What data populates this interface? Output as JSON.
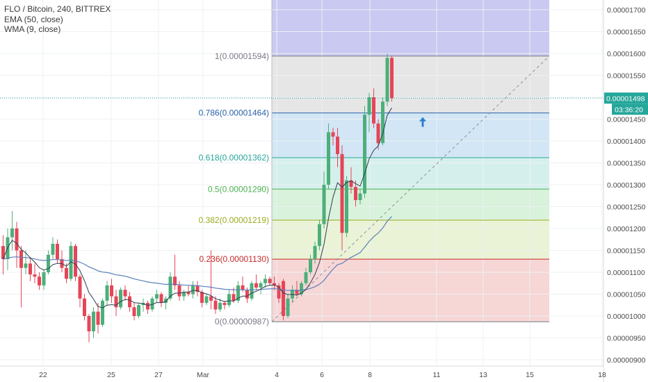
{
  "chart_data": {
    "type": "candlestick",
    "symbol_line": "FLO / Bitcoin, 240, BITTREX",
    "indicators": [
      "EMA (50, close)",
      "WMA (9, close)"
    ],
    "y_ticks": [
      "0.00001700",
      "0.00001650",
      "0.00001600",
      "0.00001550",
      "0.00001500",
      "0.00001450",
      "0.00001400",
      "0.00001350",
      "0.00001300",
      "0.00001250",
      "0.00001200",
      "0.00001150",
      "0.00001100",
      "0.00001050",
      "0.00001000",
      "0.00000950",
      "0.00000900"
    ],
    "ylim": [
      8.9e-06,
      1.74e-05
    ],
    "x_ticks": [
      "22",
      "25",
      "27",
      "Mar",
      "4",
      "6",
      "8",
      "11",
      "13",
      "15",
      "18"
    ],
    "last_price": "0.00001498",
    "countdown": "03:36:20",
    "fib_levels": [
      {
        "label": "1(0.00001594)",
        "value": 1.594e-05,
        "color": "#787b86",
        "fill": "#e6e6e6"
      },
      {
        "label": "0.786(0.00001464)",
        "value": 1.464e-05,
        "color": "#2962a8",
        "fill": "#d2e6f5"
      },
      {
        "label": "0.618(0.00001362)",
        "value": 1.362e-05,
        "color": "#26a69a",
        "fill": "#d5f0ec"
      },
      {
        "label": "0.5(0.00001290)",
        "value": 1.29e-05,
        "color": "#4caf50",
        "fill": "#d8f2dc"
      },
      {
        "label": "0.382(0.00001219)",
        "value": 1.219e-05,
        "color": "#9cab1f",
        "fill": "#eaf3d6"
      },
      {
        "label": "0.236(0.00001130)",
        "value": 1.13e-05,
        "color": "#c62828",
        "fill": "#f7d6d6"
      },
      {
        "label": "0(0.00000987)",
        "value": 9.87e-06,
        "color": "#787b86",
        "fill": "none"
      }
    ],
    "colors": {
      "up": "#4caf7a",
      "down": "#e64557",
      "ema": "#5b7fb8",
      "wma": "#2c3e50",
      "top_band": "#c9c9f2",
      "price_line": "#26a69a"
    },
    "candles": [
      [
        1.16e-05,
        1.185e-05,
        1.095e-05,
        1.13e-05
      ],
      [
        1.13e-05,
        1.2e-05,
        1.105e-05,
        1.18e-05
      ],
      [
        1.18e-05,
        1.24e-05,
        1.15e-05,
        1.2e-05
      ],
      [
        1.2e-05,
        1.215e-05,
        1.11e-05,
        1.15e-05
      ],
      [
        1.15e-05,
        1.16e-05,
        1.02e-05,
        1.11e-05
      ],
      [
        1.11e-05,
        1.15e-05,
        1.095e-05,
        1.12e-05
      ],
      [
        1.12e-05,
        1.135e-05,
        1.08e-05,
        1.095e-05
      ],
      [
        1.095e-05,
        1.12e-05,
        1.075e-05,
        1.09e-05
      ],
      [
        1.09e-05,
        1.1e-05,
        1.06e-05,
        1.07e-05
      ],
      [
        1.07e-05,
        1.105e-05,
        1.06e-05,
        1.1e-05
      ],
      [
        1.1e-05,
        1.15e-05,
        1.095e-05,
        1.14e-05
      ],
      [
        1.14e-05,
        1.18e-05,
        1.13e-05,
        1.165e-05
      ],
      [
        1.165e-05,
        1.175e-05,
        1.12e-05,
        1.13e-05
      ],
      [
        1.13e-05,
        1.15e-05,
        1.1e-05,
        1.11e-05
      ],
      [
        1.11e-05,
        1.12e-05,
        1.075e-05,
        1.085e-05
      ],
      [
        1.085e-05,
        1.17e-05,
        1.08e-05,
        1.16e-05
      ],
      [
        1.16e-05,
        1.165e-05,
        1.08e-05,
        1.09e-05
      ],
      [
        1.09e-05,
        1.095e-05,
        1.02e-05,
        1.04e-05
      ],
      [
        1.04e-05,
        1.05e-05,
        9.9e-06,
        1e-05
      ],
      [
        1e-05,
        1.005e-05,
        9.4e-06,
        9.65e-06
      ],
      [
        9.65e-06,
        1.02e-05,
        9.5e-06,
        1.01e-05
      ],
      [
        1.01e-05,
        1.03e-05,
        9.6e-06,
        9.8e-06
      ],
      [
        9.8e-06,
        1.04e-05,
        9.75e-06,
        1.035e-05
      ],
      [
        1.035e-05,
        1.08e-05,
        1.025e-05,
        1.07e-05
      ],
      [
        1.07e-05,
        1.085e-05,
        1.03e-05,
        1.045e-05
      ],
      [
        1.045e-05,
        1.06e-05,
        1e-05,
        1.02e-05
      ],
      [
        1.02e-05,
        1.065e-05,
        1.015e-05,
        1.06e-05
      ],
      [
        1.06e-05,
        1.07e-05,
        1.035e-05,
        1.045e-05
      ],
      [
        1.045e-05,
        1.055e-05,
        1.01e-05,
        1.02e-05
      ],
      [
        1.02e-05,
        1.03e-05,
        9.9e-06,
        1e-05
      ],
      [
        1e-05,
        1.03e-05,
        9.95e-06,
        1.025e-05
      ],
      [
        1.025e-05,
        1.04e-05,
        1.01e-05,
        1.03e-05
      ],
      [
        1.03e-05,
        1.035e-05,
        1.005e-05,
        1.015e-05
      ],
      [
        1.015e-05,
        1.045e-05,
        1.01e-05,
        1.04e-05
      ],
      [
        1.04e-05,
        1.06e-05,
        1.03e-05,
        1.05e-05
      ],
      [
        1.05e-05,
        1.055e-05,
        1.02e-05,
        1.03e-05
      ],
      [
        1.03e-05,
        1.045e-05,
        1.015e-05,
        1.04e-05
      ],
      [
        1.04e-05,
        1.1e-05,
        1.035e-05,
        1.09e-05
      ],
      [
        1.09e-05,
        1.14e-05,
        1.06e-05,
        1.07e-05
      ],
      [
        1.07e-05,
        1.08e-05,
        1.035e-05,
        1.045e-05
      ],
      [
        1.045e-05,
        1.06e-05,
        1.035e-05,
        1.055e-05
      ],
      [
        1.055e-05,
        1.07e-05,
        1.045e-05,
        1.05e-05
      ],
      [
        1.05e-05,
        1.08e-05,
        1.04e-05,
        1.07e-05
      ],
      [
        1.07e-05,
        1.08e-05,
        1.045e-05,
        1.055e-05
      ],
      [
        1.055e-05,
        1.06e-05,
        1.02e-05,
        1.03e-05
      ],
      [
        1.03e-05,
        1.05e-05,
        1.025e-05,
        1.045e-05
      ],
      [
        1.045e-05,
        1.15e-05,
        1.015e-05,
        1.035e-05
      ],
      [
        1.035e-05,
        1.045e-05,
        1.005e-05,
        1.015e-05
      ],
      [
        1.015e-05,
        1.04e-05,
        1.01e-05,
        1.03e-05
      ],
      [
        1.03e-05,
        1.035e-05,
        1.015e-05,
        1.025e-05
      ],
      [
        1.025e-05,
        1.06e-05,
        1.02e-05,
        1.05e-05
      ],
      [
        1.05e-05,
        1.065e-05,
        1.03e-05,
        1.035e-05
      ],
      [
        1.035e-05,
        1.08e-05,
        1.03e-05,
        1.07e-05
      ],
      [
        1.07e-05,
        1.09e-05,
        1.055e-05,
        1.06e-05
      ],
      [
        1.06e-05,
        1.065e-05,
        1.03e-05,
        1.04e-05
      ],
      [
        1.04e-05,
        1.08e-05,
        1.035e-05,
        1.075e-05
      ],
      [
        1.075e-05,
        1.095e-05,
        1.06e-05,
        1.065e-05
      ],
      [
        1.065e-05,
        1.08e-05,
        1.05e-05,
        1.075e-05
      ],
      [
        1.075e-05,
        1.095e-05,
        1.065e-05,
        1.085e-05
      ],
      [
        1.085e-05,
        1.09e-05,
        1.07e-05,
        1.075e-05
      ],
      [
        1.075e-05,
        1.09e-05,
        1.06e-05,
        1.07e-05
      ],
      [
        1.07e-05,
        1.075e-05,
        1.03e-05,
        1.04e-05
      ],
      [
        1.08e-05,
        1.085e-05,
        9.9e-06,
        1e-05
      ],
      [
        1e-05,
        1.05e-05,
        9.95e-06,
        1.04e-05
      ],
      [
        1.04e-05,
        1.07e-05,
        1.03e-05,
        1.06e-05
      ],
      [
        1.06e-05,
        1.08e-05,
        1.045e-05,
        1.05e-05
      ],
      [
        1.05e-05,
        1.08e-05,
        1.045e-05,
        1.075e-05
      ],
      [
        1.075e-05,
        1.11e-05,
        1.07e-05,
        1.1e-05
      ],
      [
        1.1e-05,
        1.14e-05,
        1.095e-05,
        1.13e-05
      ],
      [
        1.13e-05,
        1.17e-05,
        1.12e-05,
        1.16e-05
      ],
      [
        1.16e-05,
        1.22e-05,
        1.15e-05,
        1.21e-05
      ],
      [
        1.21e-05,
        1.33e-05,
        1.2e-05,
        1.3e-05
      ],
      [
        1.3e-05,
        1.44e-05,
        1.29e-05,
        1.42e-05
      ],
      [
        1.42e-05,
        1.43e-05,
        1.39e-05,
        1.41e-05
      ],
      [
        1.41e-05,
        1.43e-05,
        1.34e-05,
        1.37e-05
      ],
      [
        1.37e-05,
        1.39e-05,
        1.15e-05,
        1.19e-05
      ],
      [
        1.19e-05,
        1.32e-05,
        1.18e-05,
        1.31e-05
      ],
      [
        1.31e-05,
        1.34e-05,
        1.28e-05,
        1.295e-05
      ],
      [
        1.295e-05,
        1.31e-05,
        1.25e-05,
        1.265e-05
      ],
      [
        1.265e-05,
        1.29e-05,
        1.255e-05,
        1.28e-05
      ],
      [
        1.28e-05,
        1.48e-05,
        1.27e-05,
        1.46e-05
      ],
      [
        1.46e-05,
        1.51e-05,
        1.42e-05,
        1.5e-05
      ],
      [
        1.5e-05,
        1.52e-05,
        1.43e-05,
        1.44e-05
      ],
      [
        1.44e-05,
        1.45e-05,
        1.38e-05,
        1.395e-05
      ],
      [
        1.395e-05,
        1.5e-05,
        1.39e-05,
        1.49e-05
      ],
      [
        1.49e-05,
        1.6e-05,
        1.48e-05,
        1.59e-05
      ],
      [
        1.59e-05,
        1.595e-05,
        1.49e-05,
        1.498e-05
      ]
    ]
  }
}
